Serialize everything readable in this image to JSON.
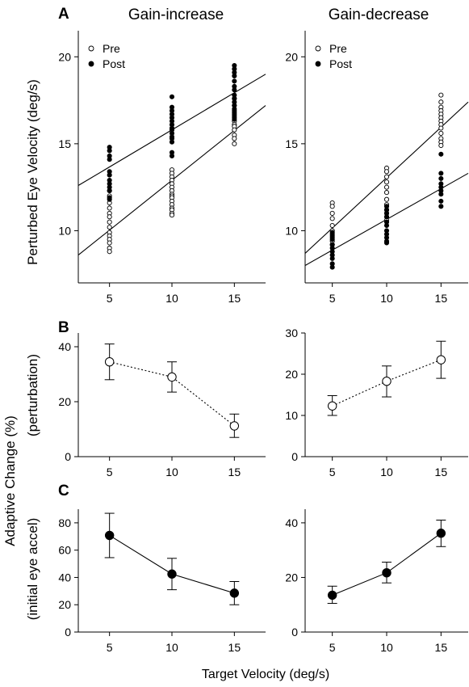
{
  "figure": {
    "panel_letters": [
      "A",
      "B",
      "C"
    ],
    "col_titles": [
      "Gain-increase",
      "Gain-decrease"
    ],
    "ylabel_A": "Perturbed Eye Velocity (deg/s)",
    "ylabel_BC_main": "Adaptive Change (%)",
    "ylabel_B_sub": "(perturbation)",
    "ylabel_C_sub": "(initial eye accel)",
    "xlabel": "Target Velocity (deg/s)"
  },
  "chart_data": [
    {
      "id": "A_gain_increase",
      "panel": "A",
      "type": "scatter",
      "xlim": [
        2.5,
        17.5
      ],
      "ylim": [
        7,
        21.5
      ],
      "xticks": [
        5,
        10,
        15
      ],
      "yticks": [
        10,
        15,
        20
      ],
      "legend": [
        {
          "name": "Pre",
          "marker": "open"
        },
        {
          "name": "Post",
          "marker": "filled"
        }
      ],
      "legend_position": "top-left",
      "series": [
        {
          "name": "Pre",
          "marker": "open",
          "x": [
            5,
            5,
            5,
            5,
            5,
            5,
            5,
            5,
            5,
            5,
            5,
            5,
            5,
            5,
            10,
            10,
            10,
            10,
            10,
            10,
            10,
            10,
            10,
            10,
            10,
            10,
            10,
            10,
            10,
            10,
            15,
            15,
            15,
            15,
            15,
            15,
            15,
            15,
            15,
            15,
            15,
            15
          ],
          "y": [
            12.3,
            12.0,
            11.6,
            11.3,
            11.0,
            10.8,
            10.5,
            10.2,
            9.9,
            9.7,
            9.5,
            9.3,
            9.0,
            8.8,
            13.5,
            13.3,
            13.1,
            12.9,
            12.7,
            12.5,
            12.3,
            12.1,
            12.0,
            11.9,
            11.7,
            11.5,
            11.3,
            11.2,
            11.0,
            10.9,
            17.6,
            17.2,
            16.9,
            16.7,
            16.5,
            16.3,
            16.1,
            16.0,
            15.8,
            15.5,
            15.3,
            15.0
          ]
        },
        {
          "name": "Post",
          "marker": "filled",
          "x": [
            5,
            5,
            5,
            5,
            5,
            5,
            5,
            5,
            5,
            5,
            5,
            5,
            10,
            10,
            10,
            10,
            10,
            10,
            10,
            10,
            10,
            10,
            10,
            10,
            10,
            10,
            10,
            15,
            15,
            15,
            15,
            15,
            15,
            15,
            15,
            15,
            15,
            15,
            15,
            15,
            15,
            15
          ],
          "y": [
            14.8,
            14.6,
            14.3,
            14.1,
            13.4,
            13.2,
            12.9,
            12.7,
            12.5,
            12.3,
            11.9,
            11.8,
            17.7,
            17.1,
            16.9,
            16.7,
            16.5,
            16.3,
            16.1,
            15.9,
            15.8,
            15.6,
            15.4,
            15.3,
            15.1,
            14.5,
            14.3,
            19.5,
            19.3,
            19.1,
            18.9,
            18.6,
            18.3,
            18.1,
            17.8,
            17.6,
            17.4,
            17.2,
            17.0,
            16.8,
            16.6,
            16.4
          ]
        }
      ],
      "fits": [
        {
          "name": "Pre",
          "x": [
            2.5,
            17.5
          ],
          "y": [
            8.6,
            17.2
          ]
        },
        {
          "name": "Post",
          "x": [
            2.5,
            17.5
          ],
          "y": [
            12.6,
            19.0
          ]
        }
      ]
    },
    {
      "id": "A_gain_decrease",
      "panel": "A",
      "type": "scatter",
      "xlim": [
        2.5,
        17.5
      ],
      "ylim": [
        7,
        21.5
      ],
      "xticks": [
        5,
        10,
        15
      ],
      "yticks": [
        10,
        15,
        20
      ],
      "legend": [
        {
          "name": "Pre",
          "marker": "open"
        },
        {
          "name": "Post",
          "marker": "filled"
        }
      ],
      "legend_position": "top-left",
      "series": [
        {
          "name": "Pre",
          "marker": "open",
          "x": [
            5,
            5,
            5,
            5,
            5,
            5,
            5,
            5,
            5,
            5,
            10,
            10,
            10,
            10,
            10,
            10,
            10,
            10,
            10,
            10,
            10,
            10,
            15,
            15,
            15,
            15,
            15,
            15,
            15,
            15,
            15,
            15,
            15,
            15,
            15
          ],
          "y": [
            11.6,
            11.4,
            11.0,
            10.7,
            10.3,
            10.0,
            9.8,
            9.6,
            9.4,
            9.2,
            13.6,
            13.4,
            13.1,
            12.8,
            12.5,
            12.2,
            11.8,
            11.5,
            11.2,
            11.0,
            10.8,
            10.6,
            17.8,
            17.4,
            17.1,
            16.9,
            16.7,
            16.5,
            16.3,
            16.1,
            15.9,
            15.6,
            15.3,
            15.1,
            14.9
          ]
        },
        {
          "name": "Post",
          "marker": "filled",
          "x": [
            5,
            5,
            5,
            5,
            5,
            5,
            5,
            5,
            5,
            5,
            10,
            10,
            10,
            10,
            10,
            10,
            10,
            10,
            10,
            10,
            10,
            15,
            15,
            15,
            15,
            15,
            15,
            15,
            15,
            15
          ],
          "y": [
            9.9,
            9.7,
            9.5,
            9.2,
            9.0,
            8.8,
            8.6,
            8.4,
            8.1,
            7.9,
            11.4,
            11.2,
            11.0,
            10.8,
            10.5,
            10.3,
            10.0,
            9.8,
            9.6,
            9.4,
            9.3,
            14.4,
            13.3,
            13.0,
            12.7,
            12.5,
            12.3,
            12.1,
            11.7,
            11.4
          ]
        }
      ],
      "fits": [
        {
          "name": "Pre",
          "x": [
            2.5,
            17.5
          ],
          "y": [
            8.7,
            17.4
          ]
        },
        {
          "name": "Post",
          "x": [
            2.5,
            17.5
          ],
          "y": [
            8.0,
            13.3
          ]
        }
      ]
    },
    {
      "id": "B_gain_increase",
      "panel": "B",
      "type": "line",
      "xlim": [
        2.5,
        17.5
      ],
      "ylim": [
        0,
        45
      ],
      "xticks": [
        5,
        10,
        15
      ],
      "yticks": [
        0,
        20,
        40
      ],
      "marker": "open",
      "line_style": "dotted",
      "x": [
        5,
        10,
        15
      ],
      "y": [
        34.5,
        29.0,
        11.2
      ],
      "err_low": [
        28.0,
        23.5,
        7.0
      ],
      "err_high": [
        41.0,
        34.5,
        15.5
      ]
    },
    {
      "id": "B_gain_decrease",
      "panel": "B",
      "type": "line",
      "xlim": [
        2.5,
        17.5
      ],
      "ylim": [
        0,
        30
      ],
      "xticks": [
        5,
        10,
        15
      ],
      "yticks": [
        0,
        10,
        20,
        30
      ],
      "marker": "open",
      "line_style": "dotted",
      "x": [
        5,
        10,
        15
      ],
      "y": [
        12.3,
        18.3,
        23.5
      ],
      "err_low": [
        10.0,
        14.5,
        19.0
      ],
      "err_high": [
        14.8,
        22.0,
        28.0
      ]
    },
    {
      "id": "C_gain_increase",
      "panel": "C",
      "type": "line",
      "xlim": [
        2.5,
        17.5
      ],
      "ylim": [
        0,
        90
      ],
      "xticks": [
        5,
        10,
        15
      ],
      "yticks": [
        0,
        20,
        40,
        60,
        80
      ],
      "marker": "filled",
      "line_style": "solid",
      "x": [
        5,
        10,
        15
      ],
      "y": [
        70.8,
        42.5,
        28.5
      ],
      "err_low": [
        54.5,
        31.0,
        20.0
      ],
      "err_high": [
        87.0,
        54.0,
        37.0
      ]
    },
    {
      "id": "C_gain_decrease",
      "panel": "C",
      "type": "line",
      "xlim": [
        2.5,
        17.5
      ],
      "ylim": [
        0,
        45
      ],
      "xticks": [
        5,
        10,
        15
      ],
      "yticks": [
        0,
        20,
        40
      ],
      "marker": "filled",
      "line_style": "solid",
      "x": [
        5,
        10,
        15
      ],
      "y": [
        13.5,
        21.7,
        36.2
      ],
      "err_low": [
        10.5,
        18.0,
        31.3
      ],
      "err_high": [
        16.8,
        25.6,
        41.0
      ]
    }
  ]
}
